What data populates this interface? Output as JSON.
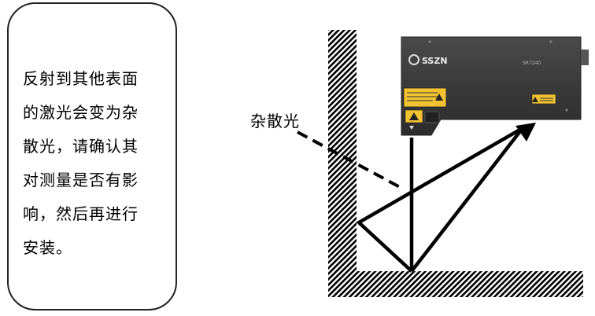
{
  "note": {
    "lines": [
      "反射到其他表面",
      "的激光会变为杂",
      "散光，请确认其",
      "对测量是否有影",
      "响，然后再进行",
      "安装。"
    ]
  },
  "stray_light_label": "杂散光",
  "sensor": {
    "brand": "SSZN",
    "model": "SR7240"
  },
  "colors": {
    "sensor_body": "#3a3a3a",
    "warning_label": "#f2c230",
    "beam": "#000000"
  }
}
